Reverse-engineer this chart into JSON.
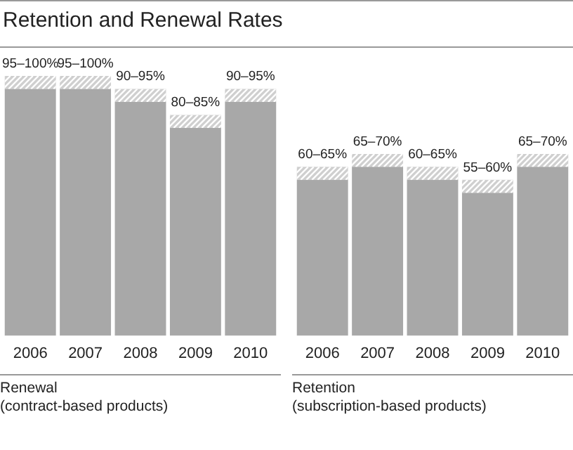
{
  "chart_data": [
    {
      "type": "bar",
      "title": "Retention and Renewal Rates",
      "xlabel": "Renewal\n(contract-based products)",
      "categories": [
        "2006",
        "2007",
        "2008",
        "2009",
        "2010"
      ],
      "stacked": true,
      "tick_labels": "x",
      "grid": false,
      "legend": false,
      "series": [
        {
          "color": "#a8a8a8",
          "values": [
            95,
            95,
            90,
            80,
            90
          ],
          "value_labels": [
            "95–100%",
            "95–100%",
            "90–95%",
            "80–85%",
            "90–95%"
          ]
        },
        {
          "color": "#cfcfcf",
          "values": [
            5,
            5,
            5,
            5,
            5
          ]
        }
      ]
    },
    {
      "type": "bar",
      "xlabel": "Retention\n(subscription-based products)",
      "categories": [
        "2006",
        "2007",
        "2008",
        "2009",
        "2010"
      ],
      "stacked": true,
      "tick_labels": "x",
      "grid": false,
      "legend": false,
      "series": [
        {
          "color": "#a8a8a8",
          "values": [
            60,
            65,
            60,
            55,
            65
          ],
          "value_labels": [
            "60–65%",
            "65–70%",
            "60–65%",
            "55–60%",
            "65–70%"
          ]
        },
        {
          "color": "#cfcfcf",
          "values": [
            5,
            5,
            5,
            5,
            5
          ]
        }
      ]
    }
  ]
}
